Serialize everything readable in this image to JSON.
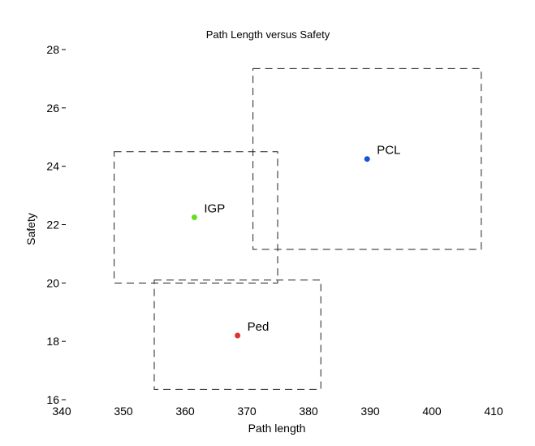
{
  "chart_data": {
    "type": "scatter",
    "title": "Path Length versus Safety",
    "xlabel": "Path length",
    "ylabel": "Safety",
    "xlim": [
      340,
      410
    ],
    "ylim": [
      16,
      28
    ],
    "xticks": [
      340,
      350,
      360,
      370,
      380,
      390,
      400,
      410
    ],
    "yticks": [
      16,
      18,
      20,
      22,
      24,
      26,
      28
    ],
    "grid": false,
    "points": [
      {
        "label": "IGP",
        "x": 361.5,
        "y": 22.25,
        "color": "#66dd22",
        "range_x": [
          348.5,
          375.0
        ],
        "range_y": [
          20.0,
          24.5
        ]
      },
      {
        "label": "PCL",
        "x": 389.5,
        "y": 24.25,
        "color": "#1155dd",
        "range_x": [
          371.0,
          408.0
        ],
        "range_y": [
          21.15,
          27.35
        ]
      },
      {
        "label": "Ped",
        "x": 368.5,
        "y": 18.2,
        "color": "#dd3333",
        "range_x": [
          355.0,
          382.0
        ],
        "range_y": [
          16.35,
          20.1
        ]
      }
    ]
  }
}
